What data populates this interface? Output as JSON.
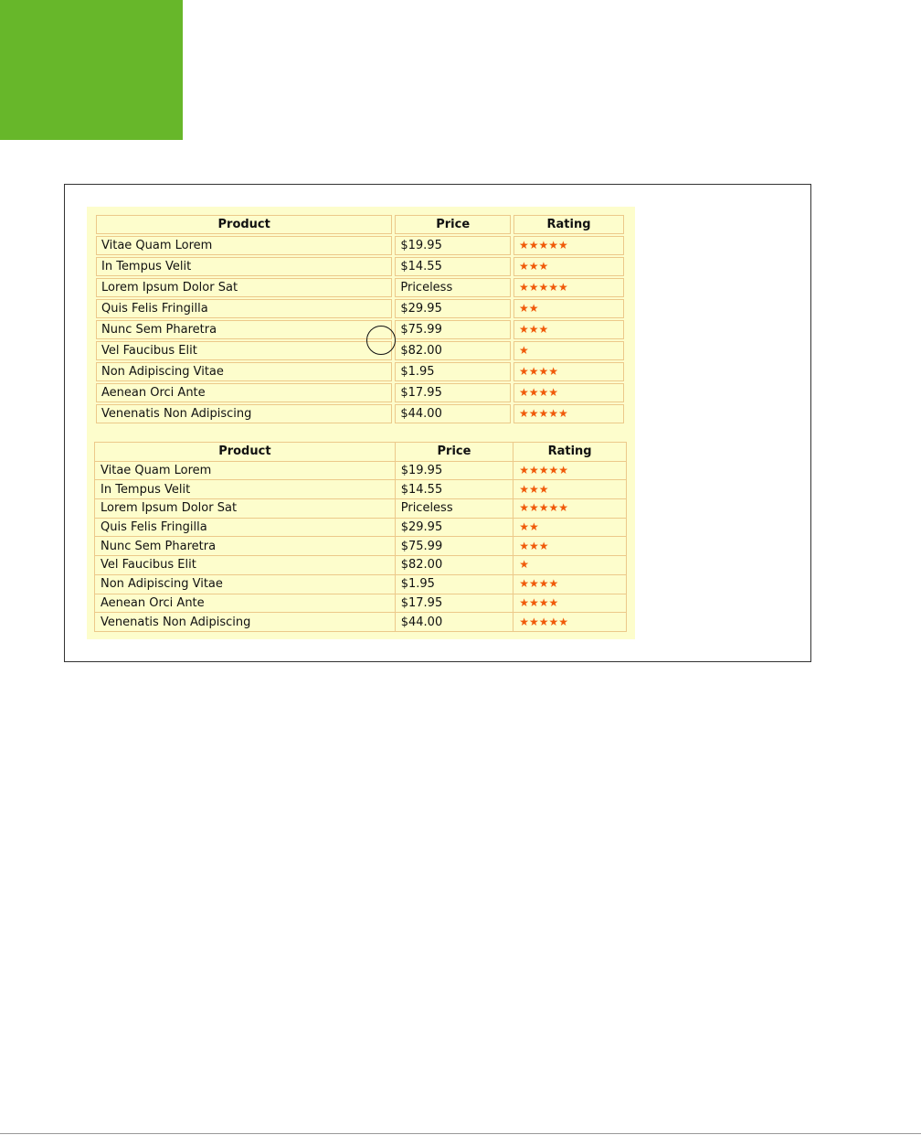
{
  "colors": {
    "accent_green": "#67b72a",
    "star": "#f05a0a",
    "panel": "#fdfdcc",
    "border": "#ecc98a"
  },
  "tables": [
    {
      "headers": [
        "Product",
        "Price",
        "Rating"
      ],
      "rows": [
        {
          "product": "Vitae Quam Lorem",
          "price": "$19.95",
          "rating": 5
        },
        {
          "product": "In Tempus Velit",
          "price": "$14.55",
          "rating": 3
        },
        {
          "product": "Lorem Ipsum Dolor Sat",
          "price": "Priceless",
          "rating": 5
        },
        {
          "product": "Quis Felis Fringilla",
          "price": "$29.95",
          "rating": 2
        },
        {
          "product": "Nunc Sem Pharetra",
          "price": "$75.99",
          "rating": 3
        },
        {
          "product": "Vel Faucibus Elit",
          "price": "$82.00",
          "rating": 1
        },
        {
          "product": "Non Adipiscing Vitae",
          "price": "$1.95",
          "rating": 4
        },
        {
          "product": "Aenean Orci Ante",
          "price": "$17.95",
          "rating": 4
        },
        {
          "product": "Venenatis Non Adipiscing",
          "price": "$44.00",
          "rating": 5
        }
      ]
    },
    {
      "headers": [
        "Product",
        "Price",
        "Rating"
      ],
      "rows": [
        {
          "product": "Vitae Quam Lorem",
          "price": "$19.95",
          "rating": 5
        },
        {
          "product": "In Tempus Velit",
          "price": "$14.55",
          "rating": 3
        },
        {
          "product": "Lorem Ipsum Dolor Sat",
          "price": "Priceless",
          "rating": 5
        },
        {
          "product": "Quis Felis Fringilla",
          "price": "$29.95",
          "rating": 2
        },
        {
          "product": "Nunc Sem Pharetra",
          "price": "$75.99",
          "rating": 3
        },
        {
          "product": "Vel Faucibus Elit",
          "price": "$82.00",
          "rating": 1
        },
        {
          "product": "Non Adipiscing Vitae",
          "price": "$1.95",
          "rating": 4
        },
        {
          "product": "Aenean Orci Ante",
          "price": "$17.95",
          "rating": 4
        },
        {
          "product": "Venenatis Non Adipiscing",
          "price": "$44.00",
          "rating": 5
        }
      ]
    }
  ]
}
